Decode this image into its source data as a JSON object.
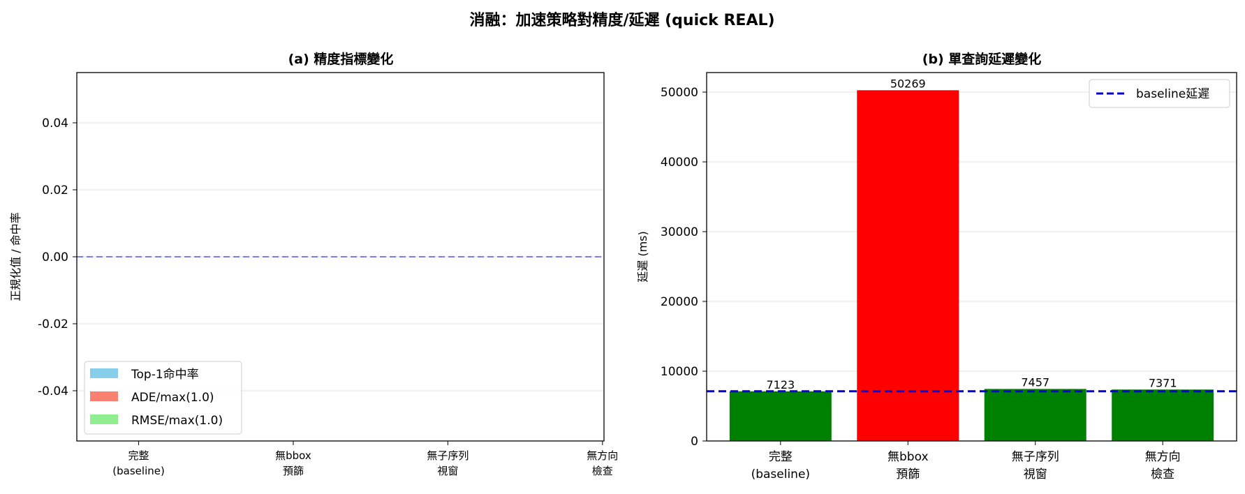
{
  "title": "消融：加速策略對精度/延遲 (quick REAL)",
  "categories": [
    "完整\n(baseline)",
    "無bbox\n預篩",
    "無子序列\n視窗",
    "無方向\n檢查"
  ],
  "chart_data": [
    {
      "type": "bar",
      "title": "(a) 精度指標變化",
      "ylabel": "正規化值 / 命中率",
      "ylim": [
        -0.055,
        0.055
      ],
      "yticks": [
        "0.04",
        "0.02",
        "0.00",
        "-0.02",
        "-0.04"
      ],
      "grid": true,
      "series": [
        {
          "name": "Top-1命中率",
          "color": "#87ceeb",
          "values": [
            0,
            0,
            0,
            0
          ]
        },
        {
          "name": "ADE/max(1.0)",
          "color": "#fa8072",
          "values": [
            0,
            0,
            0,
            0
          ]
        },
        {
          "name": "RMSE/max(1.0)",
          "color": "#90ee90",
          "values": [
            0,
            0,
            0,
            0
          ]
        }
      ],
      "reference_line": {
        "y": 0,
        "color": "#7b7bf0",
        "style": "dashed"
      },
      "legend_position": "lower-left"
    },
    {
      "type": "bar",
      "title": "(b) 單查詢延遲變化",
      "ylabel": "延遲 (ms)",
      "ylim": [
        0,
        52800
      ],
      "yticks": [
        "0",
        "10000",
        "20000",
        "30000",
        "40000",
        "50000"
      ],
      "grid": true,
      "values": [
        7123,
        50269,
        7457,
        7371
      ],
      "data_labels": [
        "7123",
        "50269",
        "7457",
        "7371"
      ],
      "bar_colors": [
        "#008000",
        "#ff0000",
        "#008000",
        "#008000"
      ],
      "reference_line": {
        "y": 7123,
        "color": "#0000dd",
        "style": "dashed",
        "label": "baseline延遲"
      },
      "legend_position": "upper-right"
    }
  ]
}
